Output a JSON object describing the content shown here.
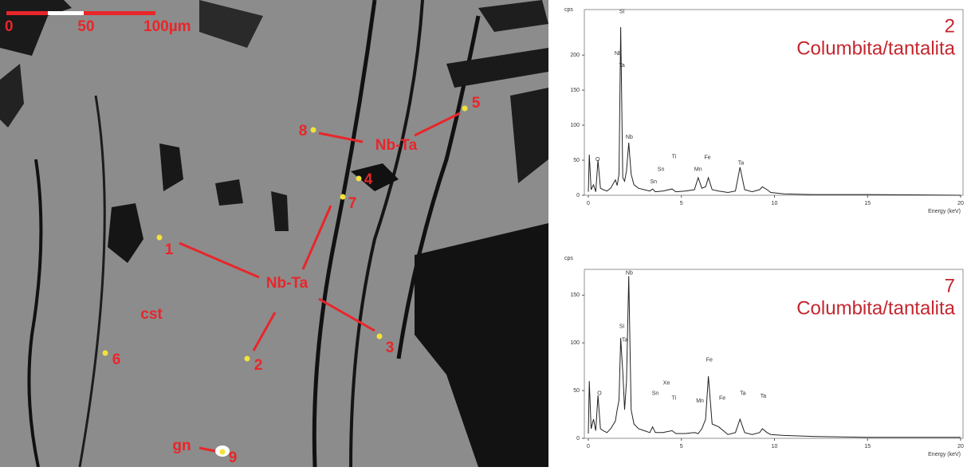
{
  "sem": {
    "scale_bar": [
      "0",
      "50",
      "100µm"
    ],
    "points": [
      "1",
      "2",
      "3",
      "4",
      "5",
      "6",
      "7",
      "8",
      "9"
    ],
    "labels": [
      "Nb-Ta",
      "Nb-Ta",
      "cst",
      "gn"
    ]
  },
  "chart_data": [
    {
      "type": "line",
      "title": "2",
      "subtitle": "Columbita/tantalita",
      "y_label": "cps",
      "x_label": "Energy (keV)",
      "xlim": [
        0,
        20
      ],
      "xticks": [
        0,
        5,
        10,
        15,
        20
      ],
      "ylim": [
        0,
        265
      ],
      "yticks": [
        0,
        50,
        100,
        150,
        200
      ],
      "color": "#222222",
      "x": [
        0,
        0.05,
        0.15,
        0.28,
        0.4,
        0.52,
        0.65,
        0.8,
        1.0,
        1.2,
        1.45,
        1.55,
        1.65,
        1.74,
        1.85,
        1.95,
        2.05,
        2.17,
        2.3,
        2.45,
        2.7,
        3.0,
        3.3,
        3.45,
        3.6,
        4.0,
        4.5,
        4.7,
        5.2,
        5.7,
        5.9,
        6.1,
        6.3,
        6.45,
        6.65,
        7.0,
        7.5,
        7.9,
        8.15,
        8.4,
        8.8,
        9.2,
        9.35,
        9.6,
        9.8,
        10.5,
        12,
        15,
        20
      ],
      "values": [
        5,
        58,
        8,
        15,
        5,
        50,
        10,
        8,
        6,
        10,
        22,
        14,
        30,
        240,
        25,
        20,
        35,
        75,
        30,
        15,
        10,
        8,
        6,
        9,
        5,
        6,
        9,
        5,
        6,
        8,
        25,
        10,
        12,
        25,
        8,
        6,
        4,
        6,
        40,
        8,
        5,
        8,
        12,
        8,
        4,
        2,
        1,
        1,
        0
      ],
      "annotations": [
        {
          "text": "Si",
          "x": 1.8,
          "y": 262
        },
        {
          "text": "Nb",
          "x": 1.6,
          "y": 202
        },
        {
          "text": "Ta",
          "x": 1.8,
          "y": 185
        },
        {
          "text": "Nb",
          "x": 2.2,
          "y": 83
        },
        {
          "text": "O",
          "x": 0.5,
          "y": 51
        },
        {
          "text": "Ti",
          "x": 4.6,
          "y": 55
        },
        {
          "text": "Sn",
          "x": 3.9,
          "y": 37
        },
        {
          "text": "Sn",
          "x": 3.5,
          "y": 19
        },
        {
          "text": "Mn",
          "x": 5.9,
          "y": 37
        },
        {
          "text": "Fe",
          "x": 6.4,
          "y": 54
        },
        {
          "text": "Ta",
          "x": 8.2,
          "y": 46
        }
      ]
    },
    {
      "type": "line",
      "title": "7",
      "subtitle": "Columbita/tantalita",
      "y_label": "cps",
      "x_label": "Energy (keV)",
      "xlim": [
        0,
        20
      ],
      "xticks": [
        0,
        5,
        10,
        15,
        20
      ],
      "ylim": [
        0,
        177
      ],
      "yticks": [
        0,
        50,
        100,
        150
      ],
      "color": "#222222",
      "x": [
        0,
        0.05,
        0.15,
        0.28,
        0.4,
        0.52,
        0.65,
        0.8,
        1.0,
        1.2,
        1.45,
        1.55,
        1.65,
        1.74,
        1.85,
        1.95,
        2.05,
        2.17,
        2.3,
        2.45,
        2.7,
        3.0,
        3.3,
        3.45,
        3.6,
        4.0,
        4.5,
        4.7,
        5.2,
        5.7,
        5.9,
        6.1,
        6.3,
        6.45,
        6.65,
        7.0,
        7.5,
        7.9,
        8.15,
        8.4,
        8.8,
        9.2,
        9.35,
        9.6,
        9.8,
        10.5,
        12,
        15,
        20
      ],
      "values": [
        5,
        60,
        10,
        20,
        8,
        45,
        10,
        8,
        6,
        10,
        18,
        30,
        40,
        105,
        70,
        30,
        60,
        170,
        30,
        15,
        10,
        8,
        6,
        12,
        6,
        6,
        8,
        5,
        5,
        6,
        5,
        10,
        20,
        65,
        15,
        12,
        4,
        6,
        20,
        6,
        4,
        6,
        10,
        6,
        4,
        3,
        2,
        1,
        1
      ],
      "annotations": [
        {
          "text": "O",
          "x": 0.6,
          "y": 47
        },
        {
          "text": "Si",
          "x": 1.8,
          "y": 117
        },
        {
          "text": "Nb",
          "x": 2.2,
          "y": 173
        },
        {
          "text": "Ta",
          "x": 1.95,
          "y": 103
        },
        {
          "text": "Xe",
          "x": 4.2,
          "y": 58
        },
        {
          "text": "Sn",
          "x": 3.6,
          "y": 47
        },
        {
          "text": "Ti",
          "x": 4.6,
          "y": 42
        },
        {
          "text": "Mn",
          "x": 6.0,
          "y": 39
        },
        {
          "text": "Fe",
          "x": 6.5,
          "y": 82
        },
        {
          "text": "Fe",
          "x": 7.2,
          "y": 42
        },
        {
          "text": "Ta",
          "x": 8.3,
          "y": 47
        },
        {
          "text": "Ta",
          "x": 9.4,
          "y": 44
        }
      ]
    }
  ]
}
